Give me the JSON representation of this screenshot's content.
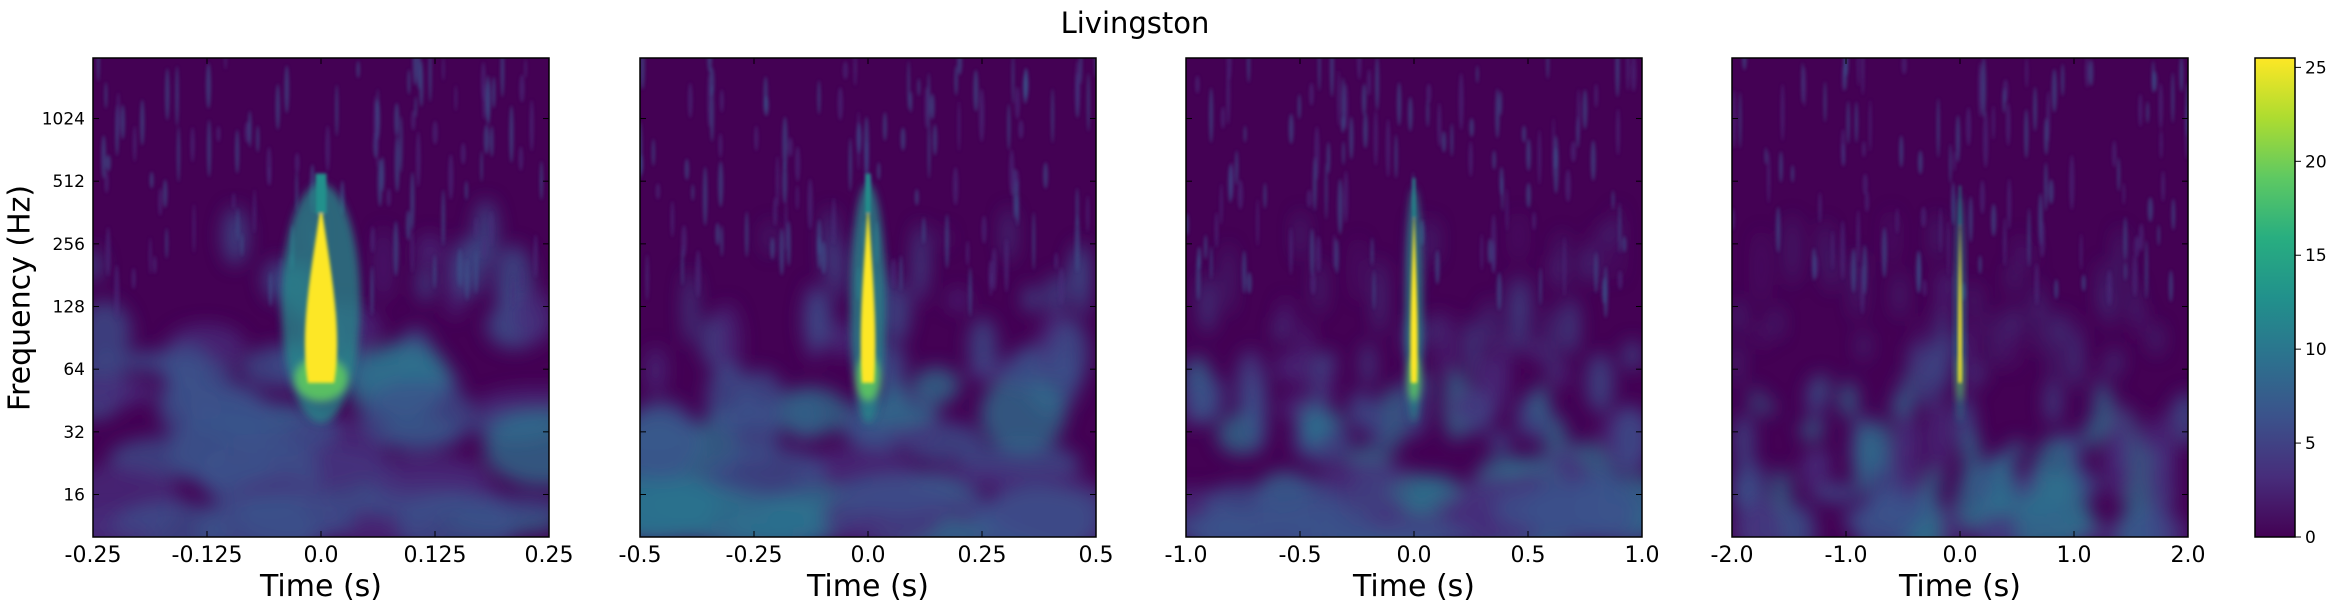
{
  "title": "Livingston",
  "colors": {
    "background": "#440154",
    "colormap": [
      "#440154",
      "#472d7b",
      "#3b528b",
      "#2c728e",
      "#21918c",
      "#28ae80",
      "#5ec962",
      "#addc30",
      "#fde725"
    ]
  },
  "chart_data": {
    "type": "heatmap",
    "title": "Livingston",
    "ylabel": "Frequency (Hz)",
    "yscale": "log2",
    "ylim": [
      10,
      2000
    ],
    "yticks": [
      16,
      32,
      64,
      128,
      256,
      512,
      1024
    ],
    "colorbar": {
      "min": 0,
      "max": 25.5,
      "ticks": [
        0,
        5,
        10,
        15,
        20,
        25
      ]
    },
    "panels": [
      {
        "xlabel": "Time (s)",
        "xlim": [
          -0.25,
          0.25
        ],
        "xticks": [
          -0.25,
          -0.125,
          0.0,
          0.125,
          0.25
        ],
        "xtick_labels": [
          "-0.25",
          "-0.125",
          "0.0",
          "0.125",
          "0.25"
        ],
        "peak": {
          "time": 0.0,
          "freq_low": 55,
          "freq_high": 400,
          "max_energy": 25.5
        }
      },
      {
        "xlabel": "Time (s)",
        "xlim": [
          -0.5,
          0.5
        ],
        "xticks": [
          -0.5,
          -0.25,
          0.0,
          0.25,
          0.5
        ],
        "xtick_labels": [
          "-0.5",
          "-0.25",
          "0.0",
          "0.25",
          "0.5"
        ],
        "peak": {
          "time": 0.0,
          "freq_low": 55,
          "freq_high": 400,
          "max_energy": 25.5
        }
      },
      {
        "xlabel": "Time (s)",
        "xlim": [
          -1.0,
          1.0
        ],
        "xticks": [
          -1.0,
          -0.5,
          0.0,
          0.5,
          1.0
        ],
        "xtick_labels": [
          "-1.0",
          "-0.5",
          "0.0",
          "0.5",
          "1.0"
        ],
        "peak": {
          "time": 0.0,
          "freq_low": 55,
          "freq_high": 380,
          "max_energy": 25.5
        }
      },
      {
        "xlabel": "Time (s)",
        "xlim": [
          -2.0,
          2.0
        ],
        "xticks": [
          -2.0,
          -1.0,
          0.0,
          1.0,
          2.0
        ],
        "xtick_labels": [
          "-2.0",
          "-1.0",
          "0.0",
          "1.0",
          "2.0"
        ],
        "peak": {
          "time": 0.0,
          "freq_low": 55,
          "freq_high": 350,
          "max_energy": 25.5
        }
      }
    ]
  }
}
